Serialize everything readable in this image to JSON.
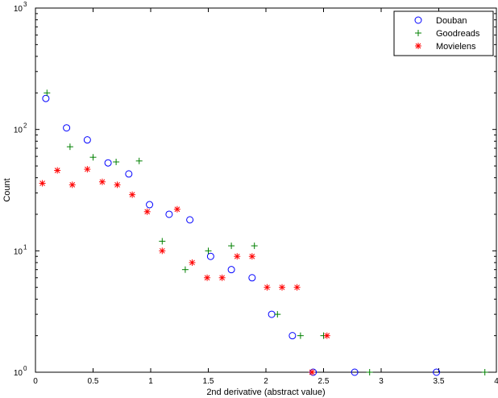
{
  "chart_data": {
    "type": "scatter",
    "xlabel": "2nd derivative (abstract value)",
    "ylabel": "Count",
    "xlim": [
      0,
      4
    ],
    "ylim": [
      1,
      1000
    ],
    "yscale": "log",
    "x_ticks": [
      "0",
      "0.5",
      "1",
      "1.5",
      "2",
      "2.5",
      "3",
      "3.5",
      "4"
    ],
    "y_ticks": [
      {
        "base": "10",
        "exp": "0"
      },
      {
        "base": "10",
        "exp": "1"
      },
      {
        "base": "10",
        "exp": "2"
      },
      {
        "base": "10",
        "exp": "3"
      }
    ],
    "grid": false,
    "legend_position": "top-right",
    "series": [
      {
        "name": "Douban",
        "marker": "circle",
        "color": "#0000ff",
        "points": [
          [
            0.09,
            180
          ],
          [
            0.27,
            103
          ],
          [
            0.45,
            82
          ],
          [
            0.63,
            53
          ],
          [
            0.81,
            43
          ],
          [
            0.99,
            24
          ],
          [
            1.16,
            20
          ],
          [
            1.34,
            18
          ],
          [
            1.52,
            9
          ],
          [
            1.7,
            7
          ],
          [
            1.88,
            6
          ],
          [
            2.05,
            3
          ],
          [
            2.23,
            2
          ],
          [
            2.41,
            1
          ],
          [
            2.77,
            1
          ],
          [
            3.48,
            1
          ]
        ]
      },
      {
        "name": "Goodreads",
        "marker": "plus",
        "color": "#008000",
        "points": [
          [
            0.1,
            200
          ],
          [
            0.3,
            72
          ],
          [
            0.5,
            59
          ],
          [
            0.7,
            54
          ],
          [
            0.9,
            55
          ],
          [
            1.1,
            12
          ],
          [
            1.3,
            7
          ],
          [
            1.5,
            10
          ],
          [
            1.7,
            11
          ],
          [
            1.9,
            11
          ],
          [
            2.1,
            3
          ],
          [
            2.3,
            2
          ],
          [
            2.5,
            2
          ],
          [
            2.9,
            1
          ],
          [
            3.9,
            1
          ]
        ]
      },
      {
        "name": "Movielens",
        "marker": "star",
        "color": "#ff0000",
        "points": [
          [
            0.06,
            36
          ],
          [
            0.19,
            46
          ],
          [
            0.32,
            35
          ],
          [
            0.45,
            47
          ],
          [
            0.58,
            37
          ],
          [
            0.71,
            35
          ],
          [
            0.84,
            29
          ],
          [
            0.97,
            21
          ],
          [
            1.1,
            10
          ],
          [
            1.23,
            22
          ],
          [
            1.36,
            8
          ],
          [
            1.49,
            6
          ],
          [
            1.62,
            6
          ],
          [
            1.75,
            9
          ],
          [
            1.88,
            9
          ],
          [
            2.01,
            5
          ],
          [
            2.14,
            5
          ],
          [
            2.27,
            5
          ],
          [
            2.4,
            1
          ],
          [
            2.53,
            2
          ]
        ]
      }
    ]
  }
}
